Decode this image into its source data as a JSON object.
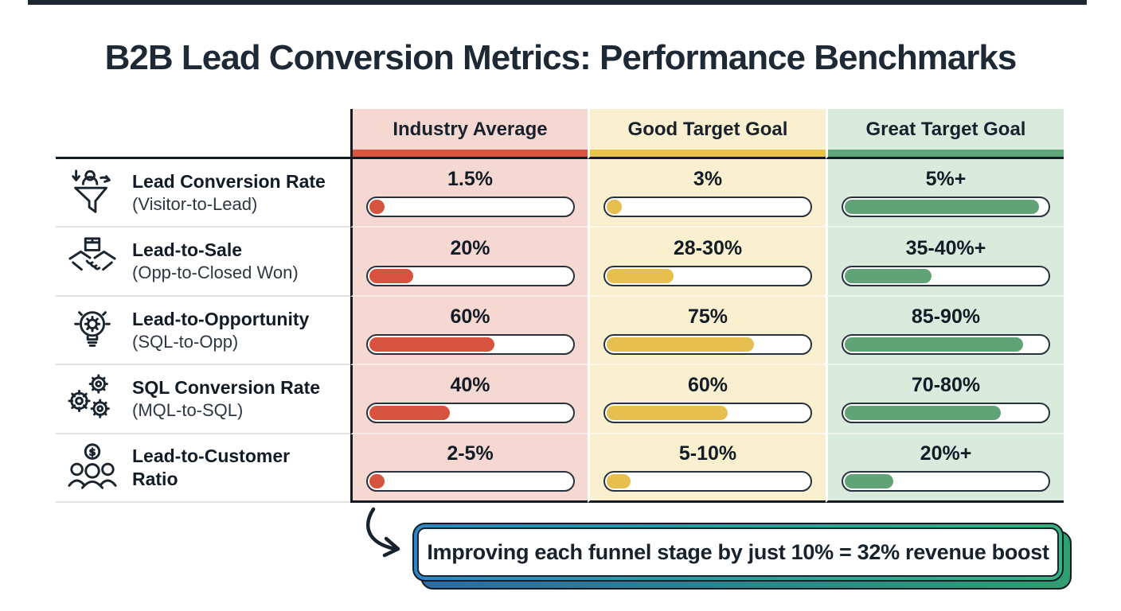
{
  "title": "B2B Lead Conversion Metrics: Performance Benchmarks",
  "columns": [
    {
      "label": "Industry Average",
      "bg": "#f6d8d2",
      "accent": "#d6563f"
    },
    {
      "label": "Good Target Goal",
      "bg": "#faf0cf",
      "accent": "#e8c24d"
    },
    {
      "label": "Great Target Goal",
      "bg": "#d9ebdd",
      "accent": "#5fa678"
    }
  ],
  "rows": [
    {
      "icon": "funnel-lead-icon",
      "title": "Lead Conversion Rate",
      "subtitle": "(Visitor-to-Lead)",
      "values": [
        "1.5%",
        "3%",
        "5%+"
      ],
      "fills": [
        7,
        7,
        96
      ]
    },
    {
      "icon": "handshake-deal-icon",
      "title": "Lead-to-Sale",
      "subtitle": "(Opp-to-Closed Won)",
      "values": [
        "20%",
        "28-30%",
        "35-40%+"
      ],
      "fills": [
        22,
        33,
        43
      ]
    },
    {
      "icon": "lightbulb-gear-icon",
      "title": "Lead-to-Opportunity",
      "subtitle": "(SQL-to-Opp)",
      "values": [
        "60%",
        "75%",
        "85-90%"
      ],
      "fills": [
        62,
        73,
        88
      ]
    },
    {
      "icon": "gears-icon",
      "title": "SQL Conversion Rate",
      "subtitle": "(MQL-to-SQL)",
      "values": [
        "40%",
        "60%",
        "70-80%"
      ],
      "fills": [
        40,
        60,
        77
      ]
    },
    {
      "icon": "customers-dollar-icon",
      "title": "Lead-to-Customer",
      "subtitle": "Ratio",
      "values": [
        "2-5%",
        "5-10%",
        "20%+"
      ],
      "fills": [
        7,
        12,
        24
      ]
    }
  ],
  "callout": {
    "text": "Improving each funnel stage by just 10% = 32% revenue boost"
  },
  "colors": {
    "title_text": "#1e2936",
    "table_line": "#131c25",
    "bar_border": "#28323c",
    "bar_red": "#d6543f",
    "bar_yellow": "#e6bf4e",
    "bar_green": "#5fa376",
    "callout_gradient_start": "#2f86c4",
    "callout_gradient_end": "#38b27e"
  },
  "chart_data": {
    "type": "table",
    "title": "B2B Lead Conversion Metrics: Performance Benchmarks",
    "categories": [
      "Lead Conversion Rate (Visitor-to-Lead)",
      "Lead-to-Sale (Opp-to-Closed Won)",
      "Lead-to-Opportunity (SQL-to-Opp)",
      "SQL Conversion Rate (MQL-to-SQL)",
      "Lead-to-Customer Ratio"
    ],
    "series": [
      {
        "name": "Industry Average",
        "values": [
          "1.5%",
          "20%",
          "60%",
          "40%",
          "2-5%"
        ],
        "numeric": [
          1.5,
          20,
          60,
          40,
          3.5
        ]
      },
      {
        "name": "Good Target Goal",
        "values": [
          "3%",
          "28-30%",
          "75%",
          "60%",
          "5-10%"
        ],
        "numeric": [
          3,
          29,
          75,
          60,
          7.5
        ]
      },
      {
        "name": "Great Target Goal",
        "values": [
          "5%+",
          "35-40%+",
          "85-90%",
          "70-80%",
          "20%+"
        ],
        "numeric": [
          5,
          37.5,
          87.5,
          75,
          20
        ]
      }
    ],
    "annotation": "Improving each funnel stage by just 10% = 32% revenue boost",
    "legend_position": "column-headers",
    "grid": false
  }
}
